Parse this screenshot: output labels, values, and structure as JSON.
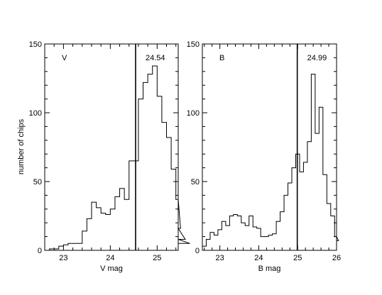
{
  "figure": {
    "ylabel": "number of chips"
  },
  "chart_data": [
    {
      "type": "histogram",
      "panel_label": "V",
      "xlabel": "V mag",
      "ylabel": "number of chips",
      "xlim": [
        22.6,
        25.45
      ],
      "ylim": [
        0,
        150
      ],
      "xticks": [
        23,
        24,
        25
      ],
      "yticks": [
        0,
        50,
        100,
        150
      ],
      "y_tick_labels_visible": true,
      "bin_width": 0.1,
      "bin_start": 22.7,
      "counts": [
        1,
        1,
        3,
        4,
        5,
        5,
        5,
        14,
        23,
        35,
        31,
        27,
        26,
        30,
        39,
        45,
        37,
        65,
        65,
        110,
        122,
        128,
        134,
        112,
        93,
        82,
        59,
        37,
        16,
        8,
        5
      ],
      "marker_x": 24.54,
      "marker_label": "24.54"
    },
    {
      "type": "histogram",
      "panel_label": "B",
      "xlabel": "B mag",
      "ylabel": "",
      "xlim": [
        22.55,
        26.0
      ],
      "ylim": [
        0,
        150
      ],
      "xticks": [
        23,
        24,
        25,
        26
      ],
      "yticks": [
        0,
        50,
        100,
        150
      ],
      "y_tick_labels_visible": true,
      "bin_width": 0.1,
      "bin_start": 22.55,
      "counts": [
        3,
        8,
        13,
        11,
        15,
        21,
        18,
        25,
        26,
        25,
        20,
        18,
        25,
        17,
        16,
        10,
        10,
        11,
        12,
        21,
        28,
        40,
        49,
        60,
        70,
        57,
        64,
        79,
        128,
        85,
        104,
        55,
        34,
        25,
        10,
        7
      ],
      "marker_x": 24.99,
      "marker_label": "24.99"
    }
  ]
}
